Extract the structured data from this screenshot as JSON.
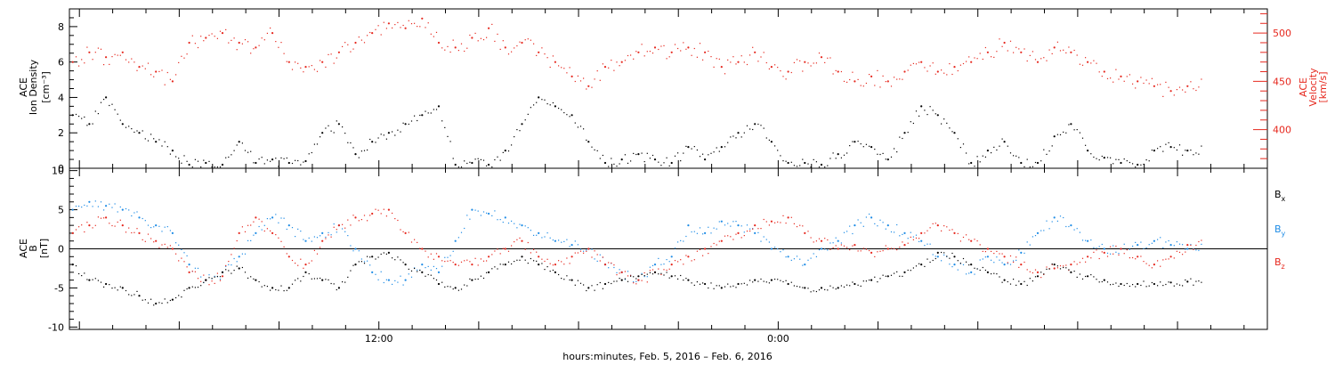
{
  "colors": {
    "black": "#000000",
    "blue": "#1e8ce6",
    "red": "#e6281e"
  },
  "footer": {
    "xlabel": "hours:minutes, Feb.  5, 2016 – Feb.  6, 2016"
  },
  "chart_data": [
    {
      "type": "scatter",
      "panel": "density-velocity",
      "y_axis_left": {
        "label_lines": [
          "ACE",
          "Ion Density",
          "[cm⁻³]"
        ],
        "range": [
          0,
          9
        ],
        "ticks": [
          0,
          2,
          4,
          6,
          8
        ]
      },
      "y_axis_right": {
        "label_lines": [
          "ACE",
          "Velocity",
          "[km/s]"
        ],
        "range": [
          360,
          525
        ],
        "ticks": [
          400,
          450,
          500
        ],
        "color": "#e6281e"
      },
      "x_axis": {
        "unit": "hours since 2016-02-05 00:00 UT",
        "range": [
          2.7,
          38.7
        ],
        "tick_labels": [
          {
            "x": 12,
            "label": "12:00"
          },
          {
            "x": 24,
            "label": "0:00"
          }
        ],
        "grid": false
      },
      "series": [
        {
          "color": "#000000",
          "axis": "left",
          "x": [
            2.8,
            3.3,
            3.8,
            4.3,
            4.8,
            5.3,
            5.8,
            6.3,
            6.8,
            7.3,
            7.8,
            8.3,
            8.8,
            9.3,
            9.8,
            10.3,
            10.8,
            11.3,
            11.8,
            12.3,
            12.8,
            13.3,
            13.8,
            14.3,
            14.8,
            15.3,
            15.8,
            16.3,
            16.8,
            17.3,
            17.8,
            18.3,
            18.8,
            19.3,
            19.8,
            20.3,
            20.8,
            21.3,
            21.8,
            22.3,
            22.8,
            23.3,
            23.8,
            24.3,
            24.8,
            25.3,
            25.8,
            26.3,
            26.8,
            27.3,
            27.8,
            28.3,
            28.8,
            29.3,
            29.8,
            30.3,
            30.8,
            31.3,
            31.8,
            32.3,
            32.8,
            33.3,
            33.8,
            34.3,
            34.8,
            35.3,
            35.8,
            36.3
          ],
          "y": [
            3,
            2.5,
            4,
            2.5,
            2,
            1.5,
            1,
            0.2,
            0.3,
            0.2,
            1.5,
            0.3,
            0.5,
            0.3,
            0.4,
            2,
            2.5,
            0.8,
            1.5,
            2,
            2.5,
            3,
            3.5,
            0.2,
            0.3,
            0.2,
            1,
            2.5,
            4,
            3.5,
            3,
            1.5,
            0.3,
            0.5,
            0.8,
            0.5,
            0.3,
            1.2,
            0.5,
            1.2,
            2,
            2.5,
            1.5,
            0.3,
            0.3,
            0.2,
            0.8,
            1.5,
            1.2,
            0.5,
            2,
            3.5,
            3,
            2,
            0.3,
            1,
            1.5,
            0.3,
            0.3,
            1.8,
            2.5,
            1,
            0.6,
            0.3,
            0.2,
            1,
            1.2,
            1
          ]
        },
        {
          "color": "#e6281e",
          "axis": "right",
          "x": [
            2.8,
            3.3,
            3.8,
            4.3,
            4.8,
            5.3,
            5.8,
            6.3,
            6.8,
            7.3,
            7.8,
            8.3,
            8.8,
            9.3,
            9.8,
            10.3,
            10.8,
            11.3,
            11.8,
            12.3,
            12.8,
            13.3,
            13.8,
            14.3,
            14.8,
            15.3,
            15.8,
            16.3,
            16.8,
            17.3,
            17.8,
            18.3,
            18.8,
            19.3,
            19.8,
            20.3,
            20.8,
            21.3,
            21.8,
            22.3,
            22.8,
            23.3,
            23.8,
            24.3,
            24.8,
            25.3,
            25.8,
            26.3,
            26.8,
            27.3,
            27.8,
            28.3,
            28.8,
            29.3,
            29.8,
            30.3,
            30.8,
            31.3,
            31.8,
            32.3,
            32.8,
            33.3,
            33.8,
            34.3,
            34.8,
            35.3,
            35.8,
            36.3
          ],
          "y": [
            470,
            480,
            475,
            480,
            465,
            460,
            450,
            490,
            495,
            500,
            490,
            485,
            500,
            470,
            465,
            470,
            480,
            490,
            500,
            510,
            505,
            515,
            490,
            485,
            495,
            505,
            485,
            490,
            480,
            470,
            455,
            445,
            465,
            470,
            480,
            485,
            480,
            485,
            480,
            465,
            470,
            480,
            465,
            460,
            470,
            475,
            460,
            450,
            455,
            450,
            460,
            470,
            460,
            465,
            470,
            480,
            490,
            480,
            470,
            485,
            480,
            470,
            460,
            455,
            450,
            445,
            440,
            445
          ]
        }
      ]
    },
    {
      "type": "scatter",
      "panel": "magnetic-field",
      "y_axis_left": {
        "label_lines": [
          "ACE",
          "B",
          "[nT]"
        ],
        "range": [
          -10.3,
          10.3
        ],
        "ticks": [
          -10,
          -5,
          0,
          5,
          10
        ]
      },
      "x_axis": {
        "unit": "hours since 2016-02-05 00:00 UT",
        "range": [
          2.7,
          38.7
        ],
        "tick_labels": [
          {
            "x": 12,
            "label": "12:00"
          },
          {
            "x": 24,
            "label": "0:00"
          }
        ],
        "grid": false
      },
      "zero_line": true,
      "legend_position": "right",
      "series": [
        {
          "name": "B",
          "name_subscript": "x",
          "color": "#000000",
          "x": [
            2.8,
            3.3,
            3.8,
            4.3,
            4.8,
            5.3,
            5.8,
            6.3,
            6.8,
            7.3,
            7.8,
            8.3,
            8.8,
            9.3,
            9.8,
            10.3,
            10.8,
            11.3,
            11.8,
            12.3,
            12.8,
            13.3,
            13.8,
            14.3,
            14.8,
            15.3,
            15.8,
            16.3,
            16.8,
            17.3,
            17.8,
            18.3,
            18.8,
            19.3,
            19.8,
            20.3,
            20.8,
            21.3,
            21.8,
            22.3,
            22.8,
            23.3,
            23.8,
            24.3,
            24.8,
            25.3,
            25.8,
            26.3,
            26.8,
            27.3,
            27.8,
            28.3,
            28.8,
            29.3,
            29.8,
            30.3,
            30.8,
            31.3,
            31.8,
            32.3,
            32.8,
            33.3,
            33.8,
            34.3,
            34.8,
            35.3,
            35.8,
            36.3
          ],
          "y": [
            -2,
            -4,
            -4.5,
            -5,
            -6,
            -7,
            -6.5,
            -5,
            -4,
            -3,
            -2.5,
            -4,
            -5,
            -5,
            -3,
            -4,
            -5,
            -2,
            -1,
            -0.5,
            -2,
            -3,
            -4.5,
            -5,
            -4,
            -3,
            -2,
            -1,
            -2,
            -3,
            -4,
            -5,
            -4.5,
            -4,
            -3.5,
            -3,
            -3.5,
            -4,
            -4.5,
            -5,
            -4.5,
            -4,
            -4,
            -4.5,
            -5,
            -5,
            -5,
            -4.5,
            -4,
            -3.5,
            -3,
            -2,
            -0.5,
            -1,
            -2,
            -3,
            -4,
            -4.5,
            -3.5,
            -2,
            -3,
            -3.5,
            -4,
            -4.5,
            -4.5,
            -4.5,
            -4.3,
            -4.2
          ]
        },
        {
          "name": "B",
          "name_subscript": "y",
          "color": "#1e8ce6",
          "x": [
            2.8,
            3.3,
            3.8,
            4.3,
            4.8,
            5.3,
            5.8,
            6.3,
            6.8,
            7.3,
            7.8,
            8.3,
            8.8,
            9.3,
            9.8,
            10.3,
            10.8,
            11.3,
            11.8,
            12.3,
            12.8,
            13.3,
            13.8,
            14.3,
            14.8,
            15.3,
            15.8,
            16.3,
            16.8,
            17.3,
            17.8,
            18.3,
            18.8,
            19.3,
            19.8,
            20.3,
            20.8,
            21.3,
            21.8,
            22.3,
            22.8,
            23.3,
            23.8,
            24.3,
            24.8,
            25.3,
            25.8,
            26.3,
            26.8,
            27.3,
            27.8,
            28.3,
            28.8,
            29.3,
            29.8,
            30.3,
            30.8,
            31.3,
            31.8,
            32.3,
            32.8,
            33.3,
            33.8,
            34.3,
            34.8,
            35.3,
            35.8,
            36.3
          ],
          "y": [
            5,
            6,
            5.5,
            5,
            4,
            3,
            2,
            -2,
            -4,
            -3,
            -1,
            2,
            4,
            3,
            1,
            2,
            3,
            0,
            -3,
            -4,
            -4,
            -2,
            -3,
            1,
            5,
            4.5,
            4,
            3,
            2,
            1,
            0.5,
            0,
            -2,
            -3,
            -4,
            -2,
            -1,
            3,
            2,
            3.5,
            3,
            2,
            0,
            -1,
            -2,
            0,
            1,
            3,
            4,
            3,
            2,
            1,
            -1,
            -2,
            -3,
            -1,
            -2,
            -0.5,
            2,
            4,
            3,
            1,
            0,
            0,
            0.5,
            1,
            0.5,
            0
          ]
        },
        {
          "name": "B",
          "name_subscript": "z",
          "color": "#e6281e",
          "x": [
            2.8,
            3.3,
            3.8,
            4.3,
            4.8,
            5.3,
            5.8,
            6.3,
            6.8,
            7.3,
            7.8,
            8.3,
            8.8,
            9.3,
            9.8,
            10.3,
            10.8,
            11.3,
            11.8,
            12.3,
            12.8,
            13.3,
            13.8,
            14.3,
            14.8,
            15.3,
            15.8,
            16.3,
            16.8,
            17.3,
            17.8,
            18.3,
            18.8,
            19.3,
            19.8,
            20.3,
            20.8,
            21.3,
            21.8,
            22.3,
            22.8,
            23.3,
            23.8,
            24.3,
            24.8,
            25.3,
            25.8,
            26.3,
            26.8,
            27.3,
            27.8,
            28.3,
            28.8,
            29.3,
            29.8,
            30.3,
            30.8,
            31.3,
            31.8,
            32.3,
            32.8,
            33.3,
            33.8,
            34.3,
            34.8,
            35.3,
            35.8,
            36.3
          ],
          "y": [
            2,
            3,
            4,
            3,
            2,
            1,
            0,
            -3,
            -4,
            -3.5,
            2,
            4,
            2,
            -1,
            -2,
            1,
            3,
            4,
            4.5,
            5,
            2,
            0,
            -1,
            -2,
            -2,
            -1,
            0,
            1,
            -1,
            -2,
            -1,
            0,
            -2,
            -3,
            -4,
            -3,
            -2,
            -1,
            0,
            1,
            2,
            3,
            3.5,
            4,
            2,
            1,
            0,
            0.5,
            -0.5,
            0,
            0.5,
            2,
            3,
            2,
            1,
            0,
            -1,
            -2,
            -3,
            -2.5,
            -2,
            -1,
            -0.5,
            0,
            -1,
            -2,
            -1,
            0.5
          ]
        }
      ]
    }
  ]
}
